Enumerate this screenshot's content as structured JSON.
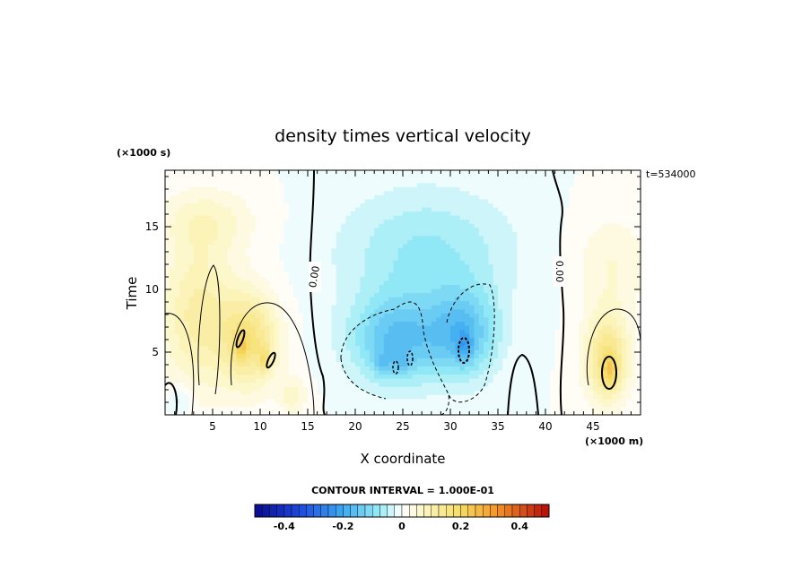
{
  "chart_data": {
    "type": "heatmap",
    "title": "density times vertical velocity",
    "xlabel": "X coordinate",
    "ylabel": "Time",
    "x_units": "(×1000 m)",
    "y_units": "(×1000 s)",
    "time_stamp": "t=534000",
    "xlim": [
      0,
      50
    ],
    "ylim": [
      0,
      19.5
    ],
    "x_ticks": [
      5,
      10,
      15,
      20,
      25,
      30,
      35,
      40,
      45
    ],
    "y_ticks": [
      5,
      10,
      15
    ],
    "contour_interval_label": "CONTOUR INTERVAL = 1.000E-01",
    "zero_contour_labels": [
      "0.00",
      "0.00"
    ],
    "colorbar": {
      "range": [
        -0.5,
        0.5
      ],
      "ticks": [
        -0.4,
        -0.2,
        0,
        0.2,
        0.4
      ],
      "tick_labels": [
        "-0.4",
        "-0.2",
        "0",
        "0.2",
        "0.4"
      ],
      "levels": 40
    },
    "features": [
      {
        "x": 3.5,
        "y": 8.0,
        "sx": 4.0,
        "sy": 6.0,
        "value": 0.11
      },
      {
        "x": 4.5,
        "y": 15.5,
        "sx": 5.0,
        "sy": 2.5,
        "value": 0.06
      },
      {
        "x": 9.0,
        "y": 6.0,
        "sx": 3.0,
        "sy": 3.8,
        "value": 0.15
      },
      {
        "x": 8.0,
        "y": 5.5,
        "sx": 0.6,
        "sy": 1.2,
        "value": 0.08
      },
      {
        "x": 10.5,
        "y": 4.5,
        "sx": 0.6,
        "sy": 1.0,
        "value": 0.08
      },
      {
        "x": 13.5,
        "y": 1.5,
        "sx": 1.5,
        "sy": 1.5,
        "value": 0.06
      },
      {
        "x": 1.5,
        "y": 1.2,
        "sx": 1.2,
        "sy": 1.2,
        "value": -0.05
      },
      {
        "x": 24.5,
        "y": 6.0,
        "sx": 5.0,
        "sy": 3.5,
        "value": -0.15
      },
      {
        "x": 31.5,
        "y": 6.5,
        "sx": 3.5,
        "sy": 3.5,
        "value": -0.14
      },
      {
        "x": 27.5,
        "y": 13.0,
        "sx": 9.0,
        "sy": 5.0,
        "value": -0.08
      },
      {
        "x": 23.0,
        "y": 4.0,
        "sx": 1.0,
        "sy": 1.0,
        "value": -0.06
      },
      {
        "x": 25.0,
        "y": 4.0,
        "sx": 0.8,
        "sy": 0.8,
        "value": -0.05
      },
      {
        "x": 31.5,
        "y": 5.5,
        "sx": 0.8,
        "sy": 1.2,
        "value": -0.07
      },
      {
        "x": 46.5,
        "y": 4.5,
        "sx": 2.3,
        "sy": 3.5,
        "value": 0.16
      },
      {
        "x": 46.8,
        "y": 3.5,
        "sx": 0.7,
        "sy": 1.2,
        "value": 0.1
      },
      {
        "x": 47.0,
        "y": 12.0,
        "sx": 4.0,
        "sy": 4.0,
        "value": 0.05
      }
    ]
  }
}
